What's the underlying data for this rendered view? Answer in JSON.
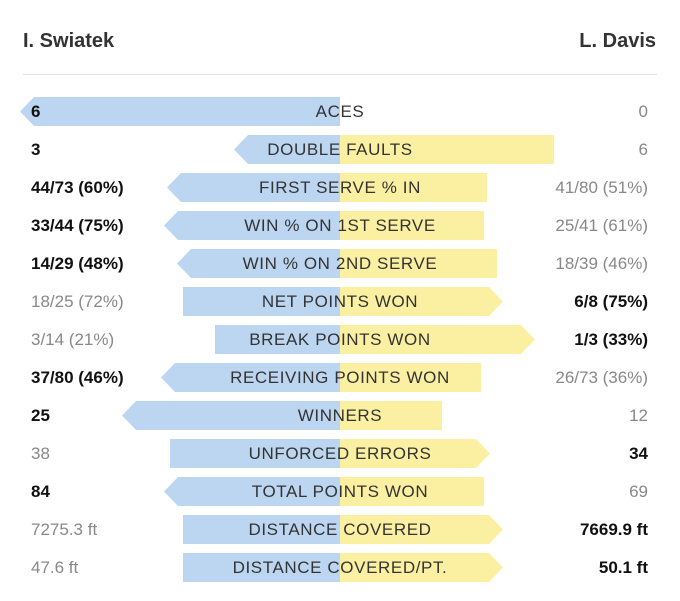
{
  "players": {
    "left": "I. Swiatek",
    "right": "L. Davis"
  },
  "colors": {
    "left_bar": "#bcd6f1",
    "right_bar": "#fbf0a2"
  },
  "chart_data": {
    "type": "bar",
    "orientation": "horizontal-butterfly",
    "series": [
      {
        "name": "I. Swiatek",
        "side": "left"
      },
      {
        "name": "L. Davis",
        "side": "right"
      }
    ],
    "rows": [
      {
        "label": "ACES",
        "left": "6",
        "right": "0",
        "left_share": 1.0,
        "right_share": 0.0,
        "winner": "left"
      },
      {
        "label": "DOUBLE FAULTS",
        "left": "3",
        "right": "6",
        "left_share": 0.33,
        "right_share": 0.67,
        "winner": "left"
      },
      {
        "label": "FIRST SERVE % IN",
        "left": "44/73 (60%)",
        "right": "41/80 (51%)",
        "left_share": 0.54,
        "right_share": 0.46,
        "winner": "left"
      },
      {
        "label": "WIN % ON 1ST SERVE",
        "left": "33/44 (75%)",
        "right": "25/41 (61%)",
        "left_share": 0.55,
        "right_share": 0.45,
        "winner": "left"
      },
      {
        "label": "WIN % ON 2ND SERVE",
        "left": "14/29 (48%)",
        "right": "18/39 (46%)",
        "left_share": 0.51,
        "right_share": 0.49,
        "winner": "left"
      },
      {
        "label": "NET POINTS WON",
        "left": "18/25 (72%)",
        "right": "6/8 (75%)",
        "left_share": 0.49,
        "right_share": 0.51,
        "winner": "right"
      },
      {
        "label": "BREAK POINTS WON",
        "left": "3/14 (21%)",
        "right": "1/3 (33%)",
        "left_share": 0.39,
        "right_share": 0.61,
        "winner": "right"
      },
      {
        "label": "RECEIVING POINTS WON",
        "left": "37/80 (46%)",
        "right": "26/73 (36%)",
        "left_share": 0.56,
        "right_share": 0.44,
        "winner": "left"
      },
      {
        "label": "WINNERS",
        "left": "25",
        "right": "12",
        "left_share": 0.68,
        "right_share": 0.32,
        "winner": "left"
      },
      {
        "label": "UNFORCED ERRORS",
        "left": "38",
        "right": "34",
        "left_share": 0.53,
        "right_share": 0.47,
        "winner": "right"
      },
      {
        "label": "TOTAL POINTS WON",
        "left": "84",
        "right": "69",
        "left_share": 0.55,
        "right_share": 0.45,
        "winner": "left"
      },
      {
        "label": "DISTANCE COVERED",
        "left": "7275.3 ft",
        "right": "7669.9 ft",
        "left_share": 0.49,
        "right_share": 0.51,
        "winner": "right"
      },
      {
        "label": "DISTANCE COVERED/PT.",
        "left": "47.6 ft",
        "right": "50.1 ft",
        "left_share": 0.49,
        "right_share": 0.51,
        "winner": "right"
      }
    ]
  }
}
